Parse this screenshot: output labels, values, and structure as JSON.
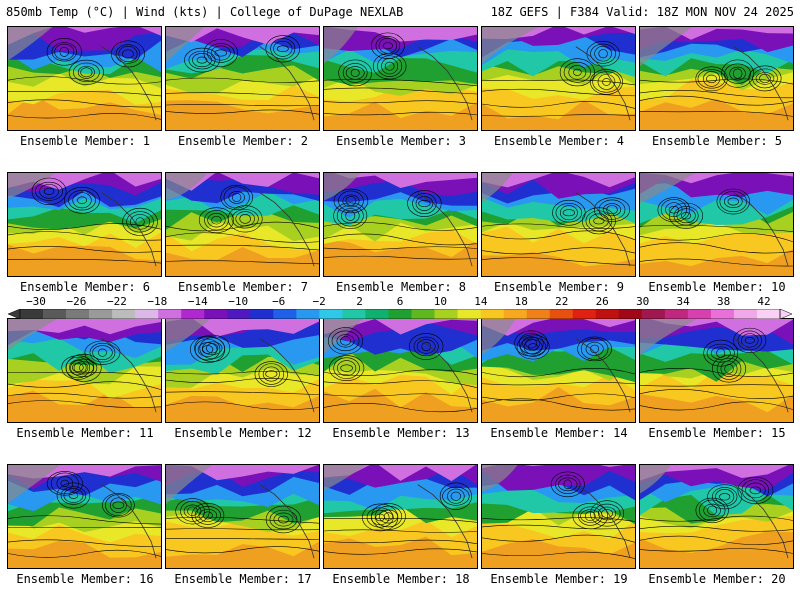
{
  "header": {
    "left": "850mb Temp (°C) | Wind (kts) | College of DuPage NEXLAB",
    "right": "18Z GEFS | F384 Valid: 18Z MON NOV 24 2025"
  },
  "panels": [
    {
      "label": "Ensemble Member: 1"
    },
    {
      "label": "Ensemble Member: 2"
    },
    {
      "label": "Ensemble Member: 3"
    },
    {
      "label": "Ensemble Member: 4"
    },
    {
      "label": "Ensemble Member: 5"
    },
    {
      "label": "Ensemble Member: 6"
    },
    {
      "label": "Ensemble Member: 7"
    },
    {
      "label": "Ensemble Member: 8"
    },
    {
      "label": "Ensemble Member: 9"
    },
    {
      "label": "Ensemble Member: 10"
    },
    {
      "label": "Ensemble Member: 11"
    },
    {
      "label": "Ensemble Member: 12"
    },
    {
      "label": "Ensemble Member: 13"
    },
    {
      "label": "Ensemble Member: 14"
    },
    {
      "label": "Ensemble Member: 15"
    },
    {
      "label": "Ensemble Member: 16"
    },
    {
      "label": "Ensemble Member: 17"
    },
    {
      "label": "Ensemble Member: 18"
    },
    {
      "label": "Ensemble Member: 19"
    },
    {
      "label": "Ensemble Member: 20"
    }
  ],
  "colorbar": {
    "labels": [
      "−30",
      "−26",
      "−22",
      "−18",
      "−14",
      "−10",
      "−6",
      "−2",
      "2",
      "6",
      "10",
      "14",
      "18",
      "22",
      "26",
      "30",
      "34",
      "38",
      "42"
    ],
    "colors": [
      "#3a3a3a",
      "#5a5a5a",
      "#7a7a7a",
      "#9a9a9a",
      "#bcbcbc",
      "#dcb8e8",
      "#d070e0",
      "#b028d0",
      "#7a10b8",
      "#5018c0",
      "#2030d0",
      "#2060e8",
      "#2898f0",
      "#30c8e8",
      "#20c8a8",
      "#10b070",
      "#20a030",
      "#60b820",
      "#a8d020",
      "#e8e828",
      "#f8c820",
      "#f8a820",
      "#f08018",
      "#e85010",
      "#e02010",
      "#c01010",
      "#a00818",
      "#a01850",
      "#c02880",
      "#d840b0",
      "#e870d8",
      "#f0a8e8",
      "#fad0f4"
    ]
  }
}
